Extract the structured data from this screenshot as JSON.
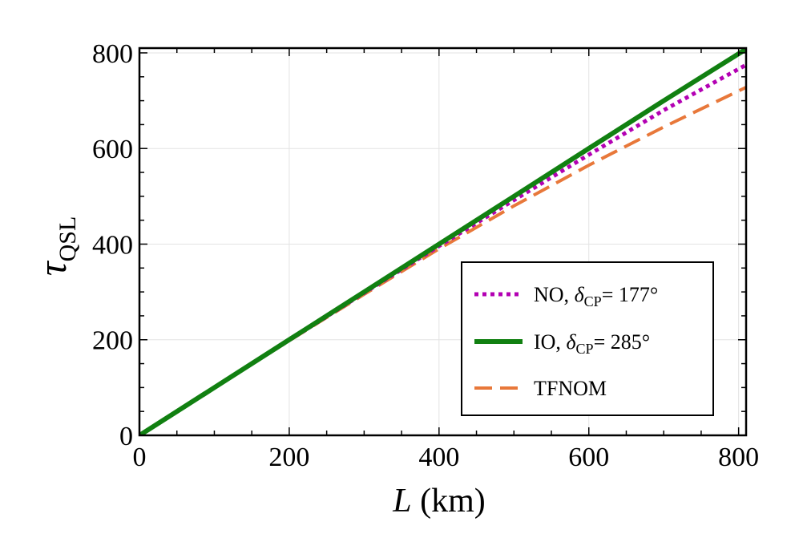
{
  "chart_data": {
    "type": "line",
    "xlabel": {
      "var": "L",
      "unit": " (km)"
    },
    "ylabel": {
      "var": "τ",
      "sub": "QSL"
    },
    "xlim": [
      0,
      810
    ],
    "ylim": [
      0,
      810
    ],
    "xticks": [
      0,
      200,
      400,
      600,
      800
    ],
    "yticks": [
      0,
      200,
      400,
      600,
      800
    ],
    "grid": true,
    "legend_position": "bottom-right",
    "series": [
      {
        "name": "TFNOM",
        "color": "#e8783a",
        "style": "dashed",
        "x": [
          0,
          100,
          200,
          300,
          400,
          500,
          600,
          700,
          810
        ],
        "y": [
          0,
          100,
          198,
          295,
          390,
          480,
          565,
          645,
          728
        ]
      },
      {
        "name": "NO, δCP= 177°",
        "legend": {
          "main": "NO, ",
          "sym": "δ",
          "sub": "CP",
          "rest": "= 177°"
        },
        "color": "#b300b3",
        "style": "dotted",
        "x": [
          0,
          100,
          200,
          300,
          400,
          500,
          600,
          700,
          810
        ],
        "y": [
          0,
          100,
          199,
          298,
          396,
          492,
          587,
          680,
          775
        ]
      },
      {
        "name": "IO, δCP= 285°",
        "legend": {
          "main": "IO, ",
          "sym": "δ",
          "sub": "CP",
          "rest": "= 285°"
        },
        "color": "#118011",
        "style": "solid",
        "x": [
          0,
          100,
          200,
          300,
          400,
          500,
          600,
          700,
          810
        ],
        "y": [
          0,
          100,
          200,
          300,
          400,
          500,
          600,
          700,
          808
        ]
      }
    ],
    "legend_order": [
      1,
      2,
      0
    ]
  }
}
